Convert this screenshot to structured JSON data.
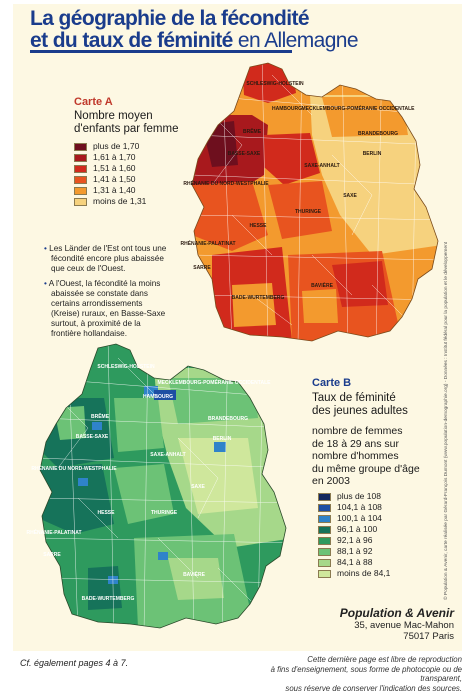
{
  "title": {
    "line1": "La géographie de la fécondité",
    "line2_bold": "et du taux de féminité",
    "line2_normal": " en Allemagne"
  },
  "map_a": {
    "card_label": "Carte A",
    "subtitle_line1": "Nombre moyen",
    "subtitle_line2": "d'enfants par femme",
    "label_color": "#c0392b",
    "legend": [
      {
        "label": "plus de 1,70",
        "color": "#6e0f1e"
      },
      {
        "label": "1,61 à 1,70",
        "color": "#a8191d"
      },
      {
        "label": "1,51 à 1,60",
        "color": "#d12a1c"
      },
      {
        "label": "1,41 à 1,50",
        "color": "#e8541f"
      },
      {
        "label": "1,31 à 1,40",
        "color": "#f39a2e"
      },
      {
        "label": "moins de 1,31",
        "color": "#f6d27e"
      }
    ],
    "regions": [
      "SCHLESWIG-HOLSTEIN",
      "HAMBOURG",
      "MECKLEMBOURG-POMÉRANIE OCCIDENTALE",
      "BRÊME",
      "BASSE-SAXE",
      "BERLIN",
      "BRANDEBOURG",
      "SAXE-ANHALT",
      "RHÉNANIE DU NORD-WESTPHALIE",
      "HESSE",
      "THURINGE",
      "SAXE",
      "RHÉNANIE-PALATINAT",
      "SARRE",
      "BAVIÈRE",
      "BADE-WURTEMBERG"
    ]
  },
  "map_b": {
    "card_label": "Carte B",
    "subtitle_line1": "Taux de féminité",
    "subtitle_line2": "des jeunes adultes",
    "desc": [
      "nombre de femmes",
      "de 18 à 29 ans sur",
      "nombre d'hommes",
      "du même groupe d'âge",
      "en 2003"
    ],
    "label_color": "#1a3c8c",
    "legend": [
      {
        "label": "plus de 108",
        "color": "#14285e"
      },
      {
        "label": "104,1 à 108",
        "color": "#1d4ea3"
      },
      {
        "label": "100,1 à 104",
        "color": "#2f83c9"
      },
      {
        "label": "96,1 à 100",
        "color": "#16735a"
      },
      {
        "label": "92,1 à 96",
        "color": "#2e9a5e"
      },
      {
        "label": "88,1 à 92",
        "color": "#6cc276"
      },
      {
        "label": "84,1 à 88",
        "color": "#a6d88a"
      },
      {
        "label": "moins de 84,1",
        "color": "#cfe79c"
      }
    ]
  },
  "notes": [
    "Les Länder de l'Est ont tous une fécondité encore plus abaissée que ceux de l'Ouest.",
    "A l'Ouest, la fécondité la moins abaissée se constate dans certains arrondissements (Kreise) ruraux, en Basse-Saxe surtout, à proximité de la frontière hollandaise."
  ],
  "publisher": {
    "name": "Population & Avenir",
    "address1": "35, avenue Mac-Mahon",
    "address2": "75017 Paris"
  },
  "vertical_credit": "© Population & Avenir, carte réalisée par Gérard-François Dumont (www.population-demographie.org) - Données : Institut fédéral pour la population et le développement",
  "footer_left": "Cf. également pages 4 à 7.",
  "footer_right": [
    "Cette dernière page est libre de reproduction",
    "à fins d'enseignement, sous forme de photocopie ou de transparent,",
    "sous réserve de conserver l'indication des sources."
  ],
  "colors": {
    "title": "#1a3c8c",
    "panel_bg": "#fdf8e3"
  }
}
